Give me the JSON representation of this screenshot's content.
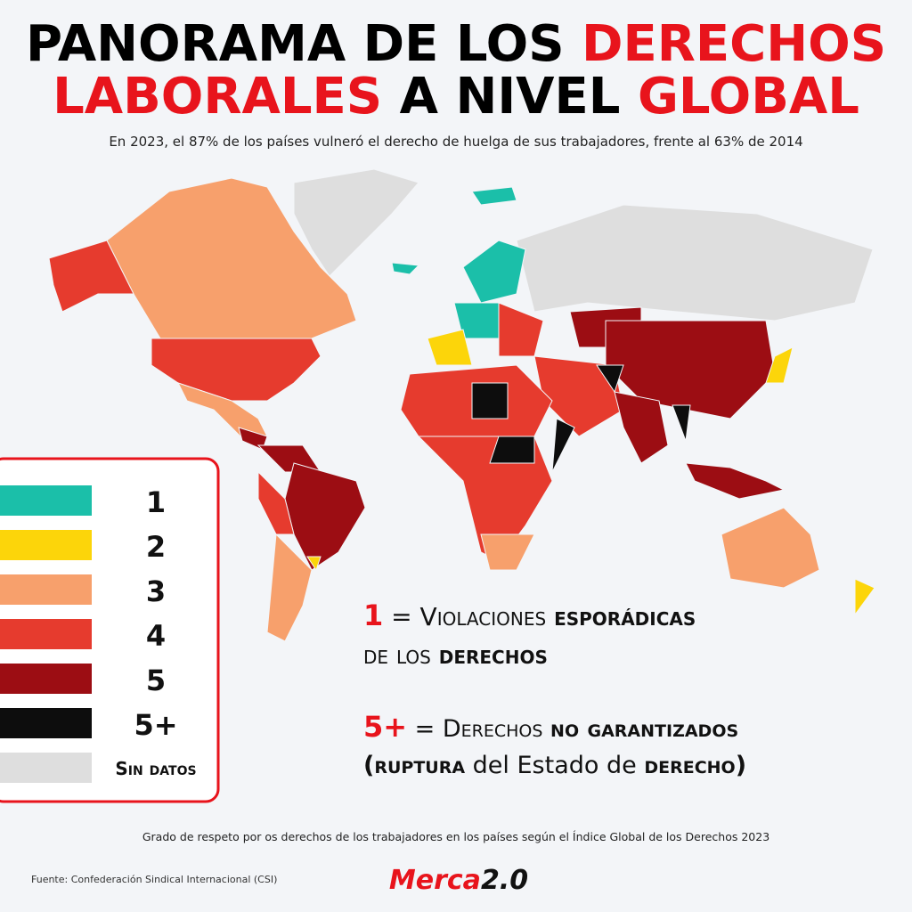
{
  "header": {
    "title_line1": [
      "PANORAMA DE LOS",
      "DERECHOS"
    ],
    "title_line2": [
      "LABORALES",
      "A NIVEL",
      "GLOBAL"
    ],
    "subtitle": "En 2023, el 87% de los países vulneró el derecho de huelga de sus trabajadores, frente al 63% de 2014"
  },
  "legend": [
    {
      "label": "1",
      "color": "#1bbfa9"
    },
    {
      "label": "2",
      "color": "#fcd50a"
    },
    {
      "label": "3",
      "color": "#f7a06c"
    },
    {
      "label": "4",
      "color": "#e63b2e"
    },
    {
      "label": "5",
      "color": "#9c0d13"
    },
    {
      "label": "5+",
      "color": "#0d0d0d"
    },
    {
      "label": "Sin datos",
      "color": "#dedede"
    }
  ],
  "notes": [
    {
      "key": "1",
      "parts": [
        "= Violaciones",
        "esporádicas",
        "de los",
        "derechos"
      ]
    },
    {
      "key": "5+",
      "parts": [
        "= Derechos",
        "no garantizados",
        "(ruptura",
        "del Estado de",
        "derecho)"
      ]
    }
  ],
  "caption": "Grado de respeto por os derechos de los trabajadores en los países según el Índice Global de los Derechos 2023",
  "source": "Fuente: Confederación Sindical Internacional (CSI)",
  "logo": [
    "Merca",
    "2.0"
  ]
}
